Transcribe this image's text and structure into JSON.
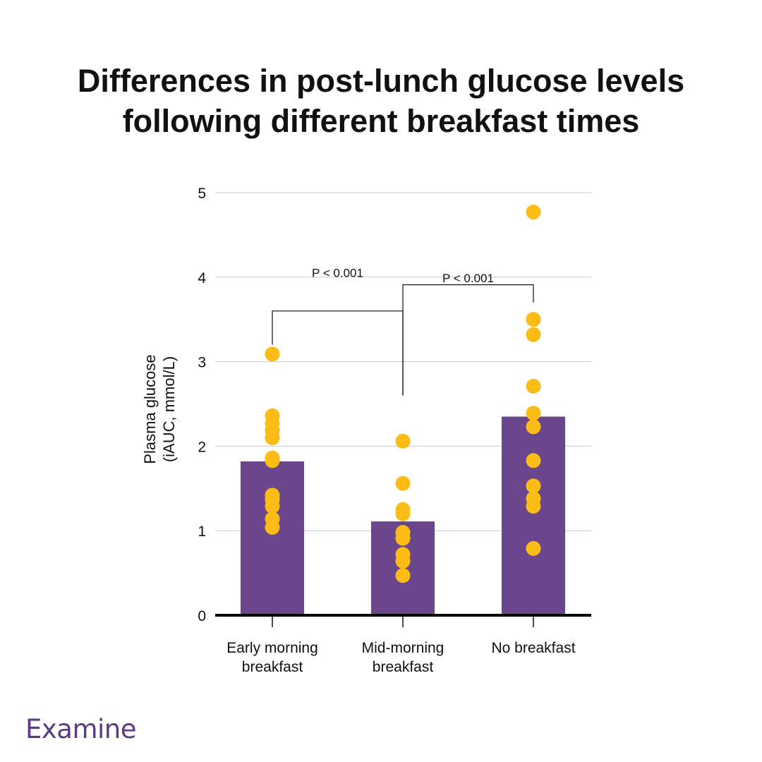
{
  "title_lines": [
    "Differences in post-lunch glucose levels",
    "following different breakfast times"
  ],
  "brand": {
    "name": "Examine",
    "color": "#5b3a86"
  },
  "colors": {
    "bar": "#6b468c",
    "dot": "#fbbc16",
    "grid": "#c8c8c8",
    "axis": "#000000"
  },
  "chart_data": {
    "type": "bar",
    "title": "Differences in post-lunch glucose levels following different breakfast times",
    "ylabel_lines": [
      "Plasma glucose",
      "(iAUC, mmol/L)"
    ],
    "xlabel": "",
    "ylim": [
      0,
      5
    ],
    "yticks": [
      0,
      1,
      2,
      3,
      4,
      5
    ],
    "grid": true,
    "categories": [
      [
        "Early morning",
        "breakfast"
      ],
      [
        "Mid-morning",
        "breakfast"
      ],
      [
        "No breakfast"
      ]
    ],
    "values": [
      1.82,
      1.11,
      2.35
    ],
    "points": [
      [
        3.09,
        2.36,
        2.27,
        2.19,
        2.1,
        1.86,
        1.83,
        1.42,
        1.37,
        1.29,
        1.14,
        1.04
      ],
      [
        2.06,
        1.56,
        1.25,
        1.2,
        0.98,
        0.91,
        0.72,
        0.64,
        0.47
      ],
      [
        4.77,
        3.5,
        3.32,
        2.71,
        2.39,
        2.23,
        1.83,
        1.53,
        1.38,
        1.29,
        0.79
      ]
    ],
    "annotations": [
      {
        "text": "P < 0.001",
        "from": 0,
        "to": 1,
        "level": 3.6,
        "label_y": 4.06,
        "left_drop": 3.2,
        "right_drop": 2.6
      },
      {
        "text": "P < 0.001",
        "from": 1,
        "to": 2,
        "level": 3.91,
        "label_y": 4.0,
        "left_drop": 2.6,
        "right_drop": 3.7
      }
    ]
  }
}
